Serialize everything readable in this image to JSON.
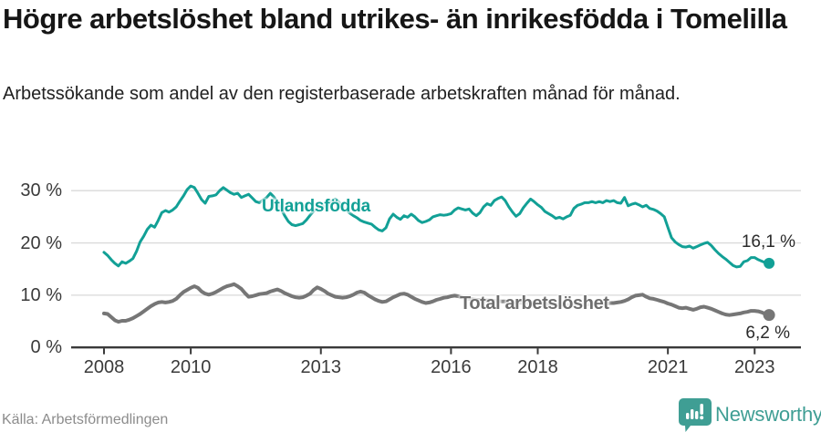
{
  "header": {
    "title": "Högre arbetslöshet bland utrikes- än inrikesfödda i Tomelilla",
    "subtitle": "Arbetssökande som andel av den registerbaserade arbetskraften månad för månad."
  },
  "footer": {
    "source": "Källa: Arbetsförmedlingen",
    "brand": "Newsworthy"
  },
  "colors": {
    "teal_line": "#12A096",
    "gray_line": "#767676",
    "grid": "#DADADA",
    "axis": "#3A3A3A",
    "tick_text": "#3A3A3A",
    "value_text": "#2A2A2A",
    "brand_teal": "#3F9E94",
    "background": "#FFFFFF"
  },
  "chart_data": {
    "type": "line",
    "title": "Högre arbetslöshet bland utrikes- än inrikesfödda i Tomelilla",
    "subtitle": "Arbetssökande som andel av den registerbaserade arbetskraften månad för månad.",
    "xlabel": "",
    "ylabel": "",
    "x_unit": "year (monthly points)",
    "x_start": 2008.0,
    "x_step": 0.083333,
    "xlim": [
      2007.27,
      2024.07
    ],
    "ylim": [
      0,
      32.5
    ],
    "grid": "horizontal",
    "legend_position": "inline-labels",
    "yticks": [
      {
        "v": 0,
        "label": "0 %"
      },
      {
        "v": 10,
        "label": "10 %"
      },
      {
        "v": 20,
        "label": "20 %"
      },
      {
        "v": 30,
        "label": "30 %"
      }
    ],
    "xticks": [
      {
        "v": 2008,
        "label": "2008"
      },
      {
        "v": 2010,
        "label": "2010"
      },
      {
        "v": 2013,
        "label": "2013"
      },
      {
        "v": 2016,
        "label": "2016"
      },
      {
        "v": 2018,
        "label": "2018"
      },
      {
        "v": 2021,
        "label": "2021"
      },
      {
        "v": 2023,
        "label": "2023"
      }
    ],
    "series": [
      {
        "name": "Utlandsfödda",
        "color": "#12A096",
        "line_width": 3,
        "end_value": 16.1,
        "end_label": "16,1 %",
        "values": [
          18.2,
          17.6,
          16.8,
          16.1,
          15.6,
          16.4,
          16.1,
          16.5,
          17.0,
          18.4,
          20.2,
          21.3,
          22.6,
          23.4,
          23.0,
          24.3,
          25.8,
          26.2,
          25.9,
          26.3,
          26.9,
          28.0,
          29.0,
          30.2,
          30.9,
          30.6,
          29.5,
          28.3,
          27.6,
          28.9,
          29.0,
          29.2,
          30.0,
          30.6,
          30.1,
          29.6,
          29.3,
          29.5,
          28.7,
          29.0,
          29.3,
          28.6,
          27.9,
          27.7,
          28.2,
          28.7,
          29.5,
          28.8,
          27.8,
          26.5,
          25.2,
          24.1,
          23.5,
          23.3,
          23.5,
          23.7,
          24.4,
          25.3,
          26.1,
          26.7,
          27.1,
          27.0,
          27.3,
          28.0,
          28.4,
          27.8,
          27.0,
          26.3,
          25.7,
          25.2,
          24.8,
          24.3,
          24.0,
          23.8,
          23.6,
          23.0,
          22.5,
          22.3,
          22.9,
          24.6,
          25.5,
          24.9,
          24.5,
          25.2,
          24.9,
          25.5,
          25.0,
          24.3,
          23.9,
          24.1,
          24.4,
          25.0,
          25.2,
          25.4,
          25.3,
          25.4,
          25.6,
          26.3,
          26.7,
          26.5,
          26.3,
          26.5,
          25.7,
          25.2,
          25.8,
          26.9,
          27.5,
          27.2,
          28.1,
          28.5,
          28.8,
          28.1,
          26.9,
          25.9,
          25.1,
          25.6,
          26.7,
          27.6,
          28.4,
          27.9,
          27.3,
          26.8,
          26.0,
          25.6,
          25.2,
          24.7,
          24.9,
          24.6,
          25.0,
          25.3,
          26.6,
          27.2,
          27.4,
          27.7,
          27.7,
          27.9,
          27.7,
          27.9,
          27.7,
          28.1,
          27.9,
          28.1,
          27.7,
          27.6,
          28.7,
          27.1,
          27.4,
          27.6,
          27.3,
          26.9,
          27.2,
          26.6,
          26.4,
          26.1,
          25.6,
          25.0,
          23.0,
          21.0,
          20.2,
          19.7,
          19.3,
          19.2,
          19.4,
          19.0,
          19.3,
          19.6,
          19.9,
          20.1,
          19.5,
          18.7,
          18.0,
          17.4,
          16.9,
          16.3,
          15.7,
          15.4,
          15.5,
          16.4,
          16.6,
          17.2,
          17.2,
          16.8,
          16.5,
          16.2,
          16.1
        ]
      },
      {
        "name": "Total arbetslöshet",
        "color": "#767676",
        "line_width": 4,
        "end_value": 6.2,
        "end_label": "6,2 %",
        "values": [
          6.5,
          6.4,
          5.8,
          5.2,
          4.9,
          5.1,
          5.1,
          5.3,
          5.6,
          6.0,
          6.4,
          6.9,
          7.4,
          7.9,
          8.3,
          8.6,
          8.7,
          8.6,
          8.7,
          8.9,
          9.3,
          10.0,
          10.6,
          11.0,
          11.4,
          11.7,
          11.4,
          10.7,
          10.3,
          10.1,
          10.3,
          10.6,
          11.0,
          11.4,
          11.7,
          11.9,
          12.1,
          11.7,
          11.2,
          10.4,
          9.7,
          9.8,
          10.0,
          10.2,
          10.3,
          10.4,
          10.7,
          10.9,
          11.1,
          10.8,
          10.4,
          10.1,
          9.8,
          9.6,
          9.5,
          9.6,
          9.9,
          10.3,
          11.0,
          11.5,
          11.2,
          10.8,
          10.3,
          10.0,
          9.7,
          9.6,
          9.5,
          9.6,
          9.8,
          10.1,
          10.5,
          10.7,
          10.5,
          10.0,
          9.6,
          9.2,
          8.9,
          8.7,
          8.8,
          9.2,
          9.6,
          9.9,
          10.2,
          10.3,
          10.1,
          9.7,
          9.3,
          9.0,
          8.7,
          8.5,
          8.6,
          8.8,
          9.1,
          9.3,
          9.5,
          9.6,
          9.8,
          9.9,
          9.8,
          9.6,
          9.4,
          9.3,
          9.2,
          9.1,
          9.1,
          9.0,
          9.0,
          9.0,
          8.9,
          8.9,
          8.8,
          8.8,
          8.7,
          8.7,
          8.6,
          8.6,
          8.5,
          8.5,
          8.5,
          8.5,
          8.4,
          8.4,
          8.3,
          8.3,
          8.2,
          8.2,
          8.2,
          8.2,
          8.1,
          8.1,
          8.1,
          8.2,
          8.2,
          8.2,
          8.3,
          8.3,
          8.3,
          8.4,
          8.4,
          8.4,
          8.5,
          8.5,
          8.6,
          8.7,
          8.9,
          9.2,
          9.6,
          9.9,
          10.0,
          10.1,
          9.7,
          9.4,
          9.3,
          9.1,
          8.9,
          8.7,
          8.4,
          8.2,
          7.9,
          7.6,
          7.5,
          7.6,
          7.4,
          7.2,
          7.4,
          7.7,
          7.8,
          7.6,
          7.4,
          7.1,
          6.8,
          6.5,
          6.3,
          6.2,
          6.3,
          6.4,
          6.5,
          6.7,
          6.8,
          7.0,
          7.0,
          6.9,
          6.7,
          6.4,
          6.2
        ]
      }
    ]
  }
}
